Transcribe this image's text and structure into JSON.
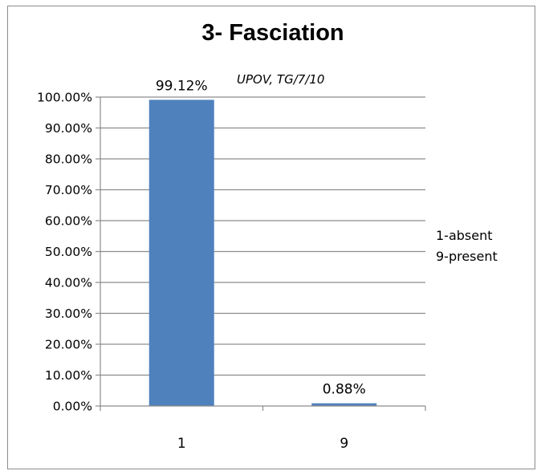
{
  "chart_data": {
    "type": "bar",
    "title": "3- Fasciation",
    "annotation": "UPOV, TG/7/10",
    "categories": [
      "1",
      "9"
    ],
    "values": [
      99.12,
      0.88
    ],
    "data_labels": [
      "99.12%",
      "0.88%"
    ],
    "ylim": [
      0,
      100
    ],
    "y_ticks": [
      "0.00%",
      "10.00%",
      "20.00%",
      "30.00%",
      "40.00%",
      "50.00%",
      "60.00%",
      "70.00%",
      "80.00%",
      "90.00%",
      "100.00%"
    ],
    "legend_lines": [
      "1-absent",
      "9-present"
    ],
    "legend_position": "right",
    "grid": true,
    "bar_color": "#4f81bd"
  }
}
